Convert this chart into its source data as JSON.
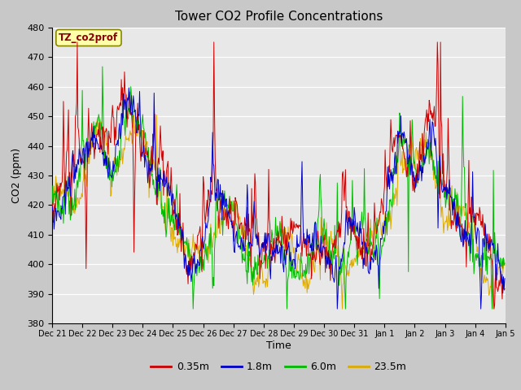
{
  "title": "Tower CO2 Profile Concentrations",
  "xlabel": "Time",
  "ylabel": "CO2 (ppm)",
  "annotation": "TZ_co2prof",
  "ylim": [
    380,
    480
  ],
  "yticks": [
    380,
    390,
    400,
    410,
    420,
    430,
    440,
    450,
    460,
    470,
    480
  ],
  "legend_labels": [
    "0.35m",
    "1.8m",
    "6.0m",
    "23.5m"
  ],
  "legend_colors": [
    "#cc0000",
    "#0000cc",
    "#00bb00",
    "#ddaa00"
  ],
  "plot_bg_color": "#e8e8e8",
  "fig_bg_color": "#c8c8c8",
  "annotation_fg": "#880000",
  "annotation_bg": "#ffffaa",
  "annotation_edge": "#888800",
  "n_days": 15,
  "samples_per_day": 48
}
